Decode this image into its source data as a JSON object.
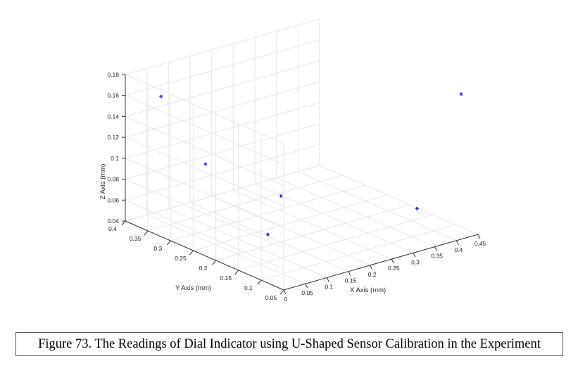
{
  "chart_data": {
    "type": "scatter3d",
    "title": "",
    "xlabel": "X Axis (mm)",
    "ylabel": "Y Axis (mm)",
    "zlabel": "Z Axis (mm)",
    "xlim": [
      0,
      0.45
    ],
    "ylim": [
      0.05,
      0.4
    ],
    "zlim": [
      0.04,
      0.18
    ],
    "xticks": [
      "0",
      "0.05",
      "0.1",
      "0.15",
      "0.2",
      "0.25",
      "0.3",
      "0.35",
      "0.4",
      "0.45"
    ],
    "yticks": [
      "0.05",
      "0.1",
      "0.15",
      "0.2",
      "0.25",
      "0.3",
      "0.35",
      "0.4"
    ],
    "zticks": [
      "0.04",
      "0.06",
      "0.08",
      "0.1",
      "0.12",
      "0.14",
      "0.16",
      "0.18"
    ],
    "grid": true,
    "marker": "*",
    "marker_color": "#2b2bd6",
    "points": [
      {
        "x": 0.02,
        "y": 0.34,
        "z": 0.168
      },
      {
        "x": 0.06,
        "y": 0.28,
        "z": 0.11
      },
      {
        "x": 0.13,
        "y": 0.18,
        "z": 0.09
      },
      {
        "x": 0.005,
        "y": 0.09,
        "z": 0.085
      },
      {
        "x": 0.33,
        "y": 0.07,
        "z": 0.075
      },
      {
        "x": 0.39,
        "y": 0.03,
        "z": 0.185
      }
    ]
  },
  "caption": "Figure 73. The Readings of Dial Indicator using U-Shaped Sensor Calibration in the Experiment"
}
